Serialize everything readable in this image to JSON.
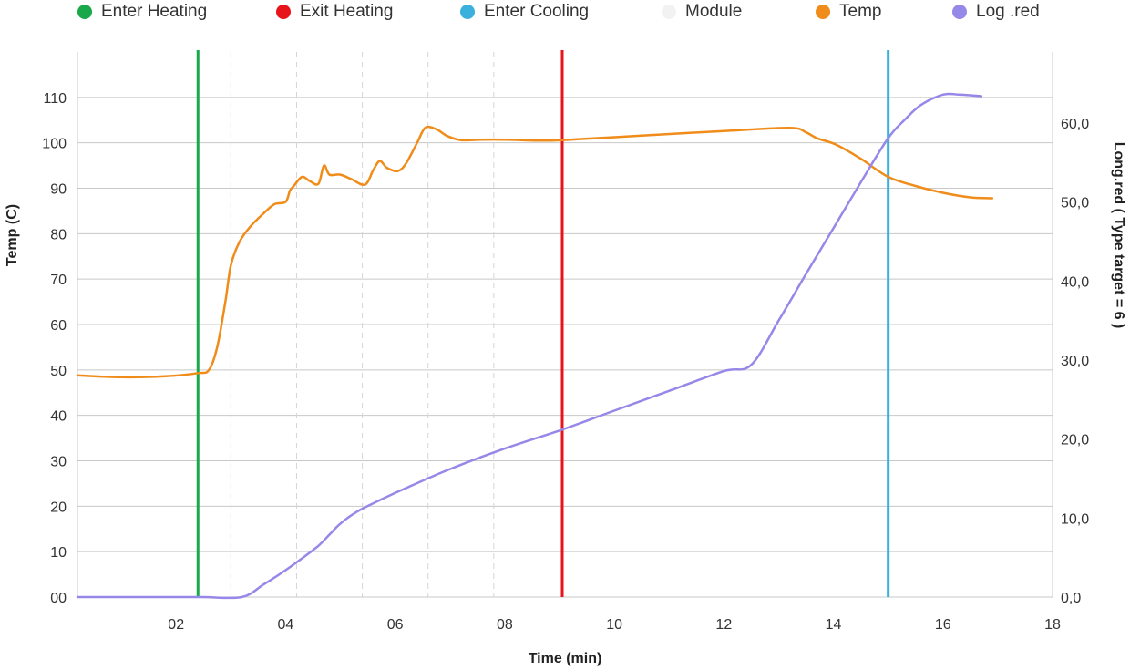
{
  "chart_data": {
    "type": "line",
    "xlabel": "Time (min)",
    "ylabel_left": "Temp (C)",
    "ylabel_right": "Long.red ( Type target = 6 )",
    "xlim": [
      0.2,
      18
    ],
    "ylim_left": [
      0,
      120
    ],
    "ylim_right": [
      0,
      69
    ],
    "x_ticks": [
      {
        "value": 2,
        "label": "02"
      },
      {
        "value": 4,
        "label": "04"
      },
      {
        "value": 6,
        "label": "06"
      },
      {
        "value": 8,
        "label": "08"
      },
      {
        "value": 10,
        "label": "10"
      },
      {
        "value": 12,
        "label": "12"
      },
      {
        "value": 14,
        "label": "14"
      },
      {
        "value": 16,
        "label": "16"
      },
      {
        "value": 18,
        "label": "18"
      }
    ],
    "y_left_ticks": [
      {
        "value": 0,
        "label": "00"
      },
      {
        "value": 10,
        "label": "10"
      },
      {
        "value": 20,
        "label": "20"
      },
      {
        "value": 30,
        "label": "30"
      },
      {
        "value": 40,
        "label": "40"
      },
      {
        "value": 50,
        "label": "50"
      },
      {
        "value": 60,
        "label": "60"
      },
      {
        "value": 70,
        "label": "70"
      },
      {
        "value": 80,
        "label": "80"
      },
      {
        "value": 90,
        "label": "90"
      },
      {
        "value": 100,
        "label": "100"
      },
      {
        "value": 110,
        "label": "110"
      }
    ],
    "y_right_ticks": [
      {
        "value": 0,
        "label": "0,0"
      },
      {
        "value": 10,
        "label": "10,0"
      },
      {
        "value": 20,
        "label": "20,0"
      },
      {
        "value": 30,
        "label": "30,0"
      },
      {
        "value": 40,
        "label": "40,0"
      },
      {
        "value": 50,
        "label": "50,0"
      },
      {
        "value": 60,
        "label": "60,0"
      }
    ],
    "minor_x_gridlines": [
      3,
      4.2,
      5.4,
      6.6,
      7.8
    ],
    "legend": [
      {
        "label": "Enter Heating",
        "color": "#1aa84a"
      },
      {
        "label": "Exit Heating",
        "color": "#e8141c"
      },
      {
        "label": "Enter Cooling",
        "color": "#3ab1dc"
      },
      {
        "label": "Module",
        "color": "#f2f2f2"
      },
      {
        "label": "Temp",
        "color": "#f08c1a"
      },
      {
        "label": "Log .red",
        "color": "#9688e8"
      }
    ],
    "markers": [
      {
        "name": "Enter Heating",
        "x": 2.4,
        "color": "#1aa84a"
      },
      {
        "name": "Exit Heating",
        "x": 9.05,
        "color": "#e8141c"
      },
      {
        "name": "Enter Cooling",
        "x": 15.0,
        "color": "#3ab1dc"
      }
    ],
    "series": [
      {
        "name": "Temp",
        "axis": "left",
        "color": "#f08c1a",
        "x": [
          0.2,
          1.0,
          1.8,
          2.4,
          2.6,
          2.75,
          2.9,
          3.0,
          3.15,
          3.35,
          3.6,
          3.8,
          4.0,
          4.08,
          4.15,
          4.3,
          4.45,
          4.6,
          4.7,
          4.8,
          5.0,
          5.2,
          5.45,
          5.6,
          5.72,
          5.85,
          6.05,
          6.2,
          6.4,
          6.55,
          6.75,
          6.95,
          7.2,
          7.55,
          8.0,
          8.6,
          9.05,
          10.5,
          12.0,
          13.2,
          13.5,
          13.7,
          14.05,
          14.5,
          15.0,
          15.5,
          16.0,
          16.5,
          16.9
        ],
        "values": [
          48.8,
          48.4,
          48.6,
          49.3,
          50.0,
          55.0,
          65.0,
          73.0,
          78.0,
          81.5,
          84.5,
          86.5,
          87.0,
          89.5,
          90.5,
          92.5,
          91.5,
          91.0,
          95.0,
          93.0,
          93.0,
          92.0,
          90.8,
          94.0,
          96.0,
          94.5,
          93.8,
          95.5,
          100.0,
          103.3,
          103.0,
          101.5,
          100.6,
          100.7,
          100.7,
          100.5,
          100.6,
          101.6,
          102.6,
          103.3,
          102.3,
          101.0,
          99.6,
          96.5,
          92.5,
          90.5,
          89.0,
          88.0,
          87.8
        ]
      },
      {
        "name": "Log .red",
        "axis": "right",
        "color": "#9688e8",
        "x": [
          0.2,
          1.0,
          2.0,
          2.5,
          3.2,
          3.6,
          4.0,
          4.3,
          4.6,
          4.8,
          5.0,
          5.3,
          5.7,
          6.2,
          7.0,
          8.0,
          9.05,
          10.0,
          11.0,
          12.0,
          12.5,
          13.0,
          13.5,
          14.0,
          14.5,
          15.0,
          15.3,
          15.6,
          16.0,
          16.3,
          16.7
        ],
        "values": [
          0.0,
          0.0,
          0.0,
          0.0,
          0.0,
          1.6,
          3.4,
          4.9,
          6.5,
          7.9,
          9.3,
          10.8,
          12.2,
          13.8,
          16.2,
          18.8,
          21.2,
          23.6,
          26.1,
          28.6,
          29.4,
          35.0,
          40.9,
          46.7,
          52.5,
          58.1,
          60.4,
          62.3,
          63.6,
          63.6,
          63.4
        ]
      }
    ]
  }
}
